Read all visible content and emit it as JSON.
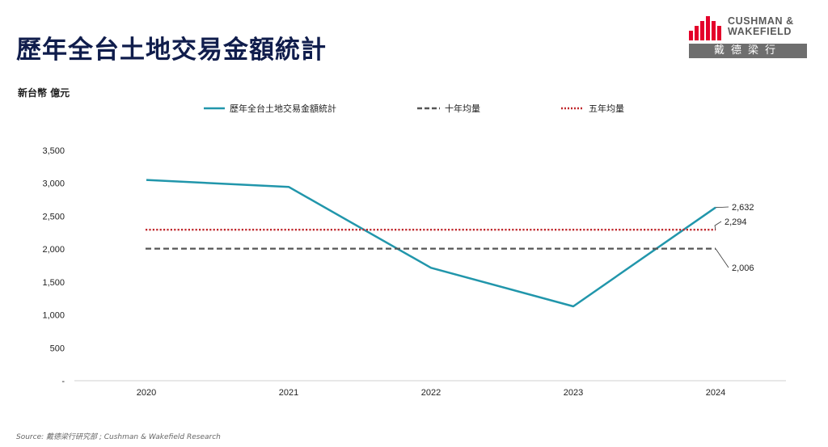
{
  "header": {
    "title": "歷年全台土地交易金額統計",
    "unit_label": "新台幣 億元"
  },
  "logo": {
    "name_line1": "CUSHMAN &",
    "name_line2": "WAKEFIELD",
    "chinese_name": "戴德梁行",
    "brand_color": "#e4002b"
  },
  "source": "Source: 戴德梁行研究部 ; Cushman & Wakefield Research",
  "chart_data": {
    "type": "line",
    "categories": [
      "2020",
      "2021",
      "2022",
      "2023",
      "2024"
    ],
    "series": [
      {
        "name": "歷年全台土地交易金額統計",
        "style": "solid",
        "color": "#2196ab",
        "values": [
          3050,
          2945,
          1715,
          1130,
          2632
        ]
      },
      {
        "name": "十年均量",
        "style": "dashed",
        "color": "#555555",
        "values": [
          2006,
          2006,
          2006,
          2006,
          2006
        ]
      },
      {
        "name": "五年均量",
        "style": "dotted",
        "color": "#c0282d",
        "values": [
          2294,
          2294,
          2294,
          2294,
          2294
        ]
      }
    ],
    "ylim": [
      0,
      3500
    ],
    "yticks": [
      0,
      500,
      1000,
      1500,
      2000,
      2500,
      3000,
      3500
    ],
    "ytick_labels": [
      "-",
      "500",
      "1,000",
      "1,500",
      "2,000",
      "2,500",
      "3,000",
      "3,500"
    ],
    "annotations": [
      {
        "series": 0,
        "label": "2,632"
      },
      {
        "series": 2,
        "label": "2,294"
      },
      {
        "series": 1,
        "label": "2,006"
      }
    ],
    "grid": false,
    "legend_position": "top"
  }
}
